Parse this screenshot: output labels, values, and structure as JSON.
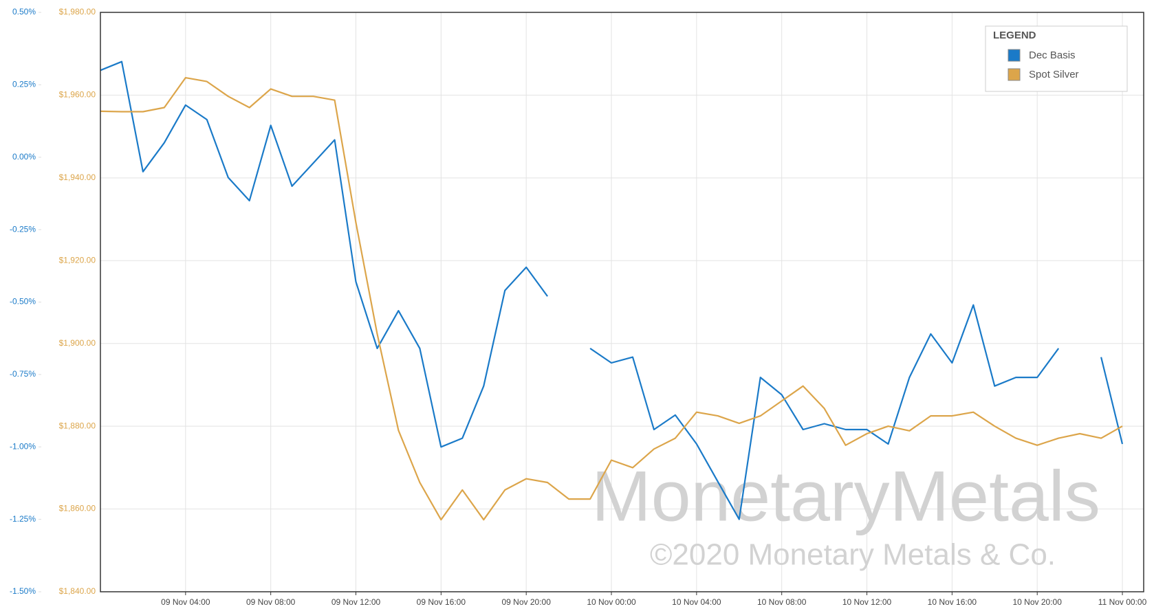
{
  "chart_data": {
    "type": "line",
    "x": [
      "09 Nov 00:00",
      "09 Nov 01:00",
      "09 Nov 02:00",
      "09 Nov 03:00",
      "09 Nov 04:00",
      "09 Nov 05:00",
      "09 Nov 06:00",
      "09 Nov 07:00",
      "09 Nov 08:00",
      "09 Nov 09:00",
      "09 Nov 10:00",
      "09 Nov 11:00",
      "09 Nov 12:00",
      "09 Nov 13:00",
      "09 Nov 14:00",
      "09 Nov 15:00",
      "09 Nov 16:00",
      "09 Nov 17:00",
      "09 Nov 18:00",
      "09 Nov 19:00",
      "09 Nov 20:00",
      "09 Nov 21:00",
      "09 Nov 22:00",
      "09 Nov 23:00",
      "10 Nov 00:00",
      "10 Nov 01:00",
      "10 Nov 02:00",
      "10 Nov 03:00",
      "10 Nov 04:00",
      "10 Nov 05:00",
      "10 Nov 06:00",
      "10 Nov 07:00",
      "10 Nov 08:00",
      "10 Nov 09:00",
      "10 Nov 10:00",
      "10 Nov 11:00",
      "10 Nov 12:00",
      "10 Nov 13:00",
      "10 Nov 14:00",
      "10 Nov 15:00",
      "10 Nov 16:00",
      "10 Nov 17:00",
      "10 Nov 18:00",
      "10 Nov 19:00",
      "10 Nov 20:00",
      "10 Nov 21:00",
      "10 Nov 22:00",
      "10 Nov 23:00",
      "11 Nov 00:00"
    ],
    "xlim": [
      "09 Nov 00:00",
      "11 Nov 01:00"
    ],
    "xticks": [
      "09 Nov 04:00",
      "09 Nov 08:00",
      "09 Nov 12:00",
      "09 Nov 16:00",
      "09 Nov 20:00",
      "10 Nov 00:00",
      "10 Nov 04:00",
      "10 Nov 08:00",
      "10 Nov 12:00",
      "10 Nov 16:00",
      "10 Nov 20:00",
      "11 Nov 00:00"
    ],
    "ylim": [
      1840,
      1980
    ],
    "yticks": [
      {
        "value": 1840,
        "label": "$1,840.00"
      },
      {
        "value": 1860,
        "label": "$1,860.00"
      },
      {
        "value": 1880,
        "label": "$1,880.00"
      },
      {
        "value": 1900,
        "label": "$1,900.00"
      },
      {
        "value": 1920,
        "label": "$1,920.00"
      },
      {
        "value": 1940,
        "label": "$1,940.00"
      },
      {
        "value": 1960,
        "label": "$1,960.00"
      },
      {
        "value": 1980,
        "label": "$1,980.00"
      }
    ],
    "y2lim": [
      -1.5,
      0.5
    ],
    "y2ticks": [
      {
        "value": -1.5,
        "label": "-1.50%"
      },
      {
        "value": -1.25,
        "label": "-1.25%"
      },
      {
        "value": -1,
        "label": "-1.00%"
      },
      {
        "value": -0.75,
        "label": "-0.75%"
      },
      {
        "value": -0.5,
        "label": "-0.50%"
      },
      {
        "value": -0.25,
        "label": "-0.25%"
      },
      {
        "value": 0,
        "label": "0.00%"
      },
      {
        "value": 0.25,
        "label": "0.25%"
      },
      {
        "value": 0.5,
        "label": "0.50%"
      }
    ],
    "grid": true,
    "legend_title": "LEGEND",
    "legend_position": "top-right",
    "annotations": [
      "MonetaryMetals",
      "©2020 Monetary Metals & Co."
    ],
    "series": [
      {
        "name": "Dec Basis",
        "color": "#1a7ac8",
        "axis": "y2",
        "values": [
          0.3,
          0.33,
          -0.05,
          0.05,
          0.18,
          0.13,
          -0.07,
          -0.15,
          0.11,
          -0.1,
          -0.02,
          0.06,
          -0.43,
          -0.66,
          -0.53,
          -0.66,
          -1.0,
          -0.97,
          -0.79,
          -0.46,
          -0.38,
          -0.48,
          null,
          -0.66,
          -0.71,
          -0.69,
          -0.94,
          -0.89,
          -0.99,
          -1.12,
          -1.25,
          -0.76,
          -0.82,
          -0.94,
          -0.92,
          -0.94,
          -0.94,
          -0.99,
          -0.76,
          -0.61,
          -0.71,
          -0.51,
          -0.79,
          -0.76,
          -0.76,
          -0.66,
          null,
          -0.69,
          -0.99
        ]
      },
      {
        "name": "Spot Silver",
        "color": "#dca54a",
        "values": [
          1956.1,
          1956,
          1956,
          1957,
          1964.2,
          1963.3,
          1959.7,
          1957,
          1961.5,
          1959.7,
          1959.7,
          1958.8,
          1929.2,
          1902.3,
          1879,
          1866.4,
          1857.4,
          1864.6,
          1857.4,
          1864.6,
          1867.3,
          1866.4,
          1862.4,
          1862.4,
          1871.8,
          1870,
          1874.5,
          1877.1,
          1883.4,
          1882.5,
          1880.7,
          1882.5,
          1886.1,
          1889.7,
          1884.3,
          1875.4,
          1878.2,
          1880,
          1878.9,
          1882.5,
          1882.5,
          1883.4,
          1880,
          1877.1,
          1875.4,
          1877.1,
          1878.2,
          1877.1,
          1880
        ]
      }
    ]
  }
}
